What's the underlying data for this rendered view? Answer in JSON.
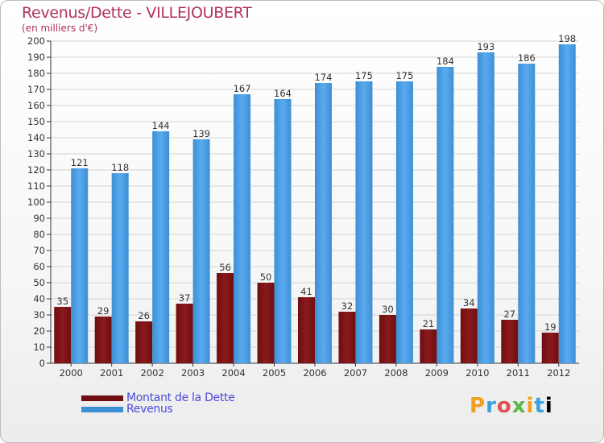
{
  "header": {
    "title": "Revenus/Dette - VILLEJOUBERT",
    "subtitle": "(en milliers d'€)"
  },
  "legend": {
    "debt_label": "Montant de la Dette",
    "revenue_label": "Revenus"
  },
  "brand": {
    "letters": [
      "P",
      "r",
      "o",
      "x",
      "i",
      "t",
      "i"
    ]
  },
  "colors": {
    "debt": "#6e0e10",
    "debt_light": "#8a1a1c",
    "revenue": "#3d8fd4",
    "revenue_light": "#5aaaf0"
  },
  "chart_data": {
    "type": "bar",
    "title": "Revenus/Dette - VILLEJOUBERT",
    "subtitle": "(en milliers d'€)",
    "categories": [
      "2000",
      "2001",
      "2002",
      "2003",
      "2004",
      "2005",
      "2006",
      "2007",
      "2008",
      "2009",
      "2010",
      "2011",
      "2012"
    ],
    "series": [
      {
        "name": "Montant de la Dette",
        "values": [
          35,
          29,
          26,
          37,
          56,
          50,
          41,
          32,
          30,
          21,
          34,
          27,
          19
        ]
      },
      {
        "name": "Revenus",
        "values": [
          121,
          118,
          144,
          139,
          167,
          164,
          174,
          175,
          175,
          184,
          193,
          186,
          198
        ]
      }
    ],
    "ylim": [
      0,
      200
    ],
    "ytick_step": 10,
    "grid": true,
    "legend_position": "bottom-left"
  }
}
